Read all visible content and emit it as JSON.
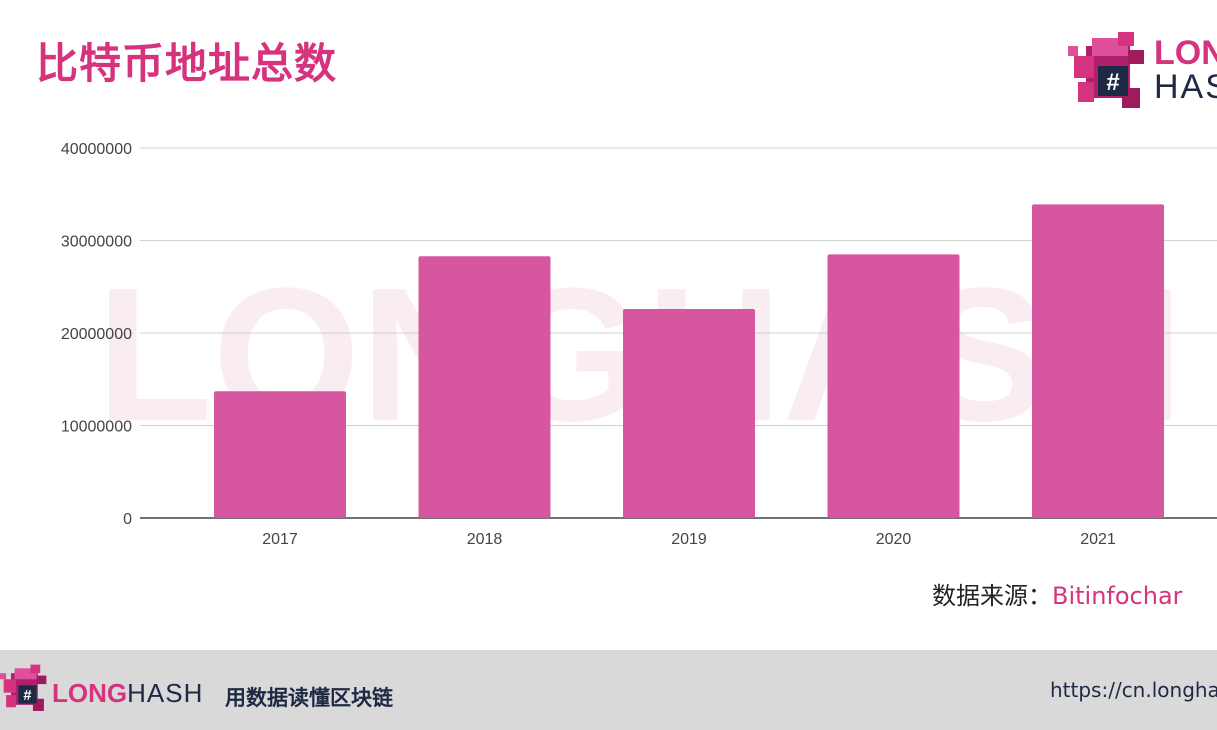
{
  "header": {
    "title": "比特币地址总数"
  },
  "brand": {
    "word_bold": "LONG",
    "word_light": "HASH",
    "top_word_bold_visible": "LON",
    "top_word_light_visible": "HAS",
    "accent": "#d6337f",
    "dark": "#1e2a44",
    "logo_icon": "pixel-dragon-hash-icon"
  },
  "source": {
    "label": "数据来源：",
    "value": "Bitinfochar"
  },
  "footer": {
    "slogan": "用数据读懂区块链",
    "url": "https://cn.longha"
  },
  "chart_data": {
    "type": "bar",
    "categories": [
      "2017",
      "2018",
      "2019",
      "2020",
      "2021"
    ],
    "values": [
      13700000,
      28300000,
      22600000,
      28500000,
      33900000
    ],
    "yticks": [
      "0",
      "10000000",
      "20000000",
      "30000000",
      "40000000"
    ],
    "ylim": [
      0,
      40000000
    ],
    "grid": true,
    "bar_color": "#d6579f",
    "watermark": "LONGHASH"
  }
}
